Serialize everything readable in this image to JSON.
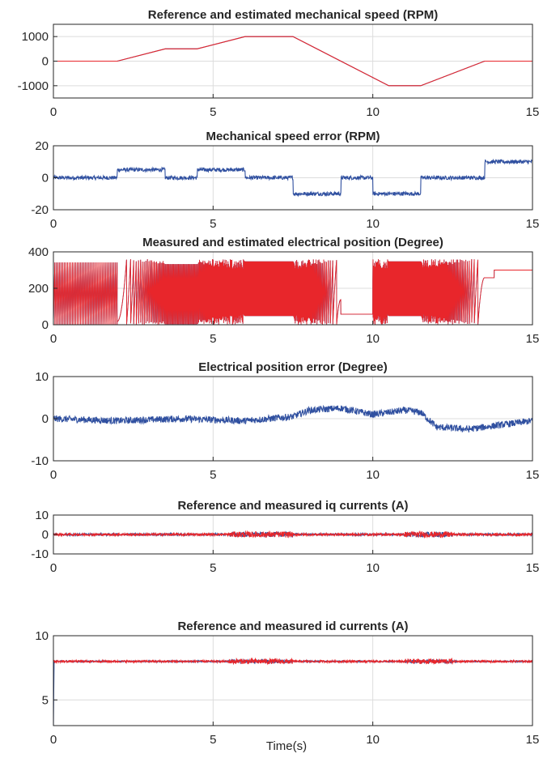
{
  "figure": {
    "xlabel": "Time(s)"
  },
  "colors": {
    "reference": "#e8262b",
    "estimate": "#3050a0",
    "grid": "#dcdcdc",
    "axis": "#262626"
  },
  "chart_data": [
    {
      "type": "line",
      "title": "Reference and estimated mechanical speed (RPM)",
      "xlim": [
        0,
        15
      ],
      "ylim": [
        -1500,
        1500
      ],
      "xticks": [
        0,
        5,
        10,
        15
      ],
      "yticks": [
        1000,
        0,
        -1000
      ],
      "grid": true,
      "series": [
        {
          "color": "#3050a0",
          "x": [
            0,
            2,
            3.5,
            4.5,
            6,
            7.5,
            9,
            10.5,
            11.5,
            13.5,
            15
          ],
          "y": [
            0,
            0,
            500,
            500,
            1000,
            1000,
            0,
            -1000,
            -1000,
            0,
            0
          ]
        },
        {
          "color": "#e8262b",
          "x": [
            0,
            2,
            3.5,
            4.5,
            6,
            7.5,
            9,
            10.5,
            11.5,
            13.5,
            15
          ],
          "y": [
            0,
            0,
            500,
            500,
            1000,
            1000,
            0,
            -1000,
            -1000,
            0,
            0
          ]
        }
      ]
    },
    {
      "type": "line",
      "title": "Mechanical speed error (RPM)",
      "xlim": [
        0,
        15
      ],
      "ylim": [
        -20,
        20
      ],
      "xticks": [
        0,
        5,
        10,
        15
      ],
      "yticks": [
        20,
        0,
        -20
      ],
      "grid": true,
      "series": [
        {
          "color": "#3050a0",
          "noise": 1.2,
          "x": [
            0,
            2,
            2,
            3.5,
            3.5,
            4.5,
            4.5,
            6,
            6,
            7.5,
            7.5,
            9,
            9,
            10,
            10,
            11.5,
            11.5,
            13.5,
            13.5,
            15
          ],
          "y": [
            0,
            0,
            5,
            5,
            0,
            0,
            5,
            5,
            0,
            0,
            -10,
            -10,
            0,
            0,
            -10,
            -10,
            0,
            0,
            10,
            10
          ]
        }
      ]
    },
    {
      "type": "line",
      "title": "Measured and estimated electrical position (Degree)",
      "xlim": [
        0,
        15
      ],
      "ylim": [
        0,
        400
      ],
      "xticks": [
        0,
        5,
        10,
        15
      ],
      "yticks": [
        400,
        200,
        0
      ],
      "grid": true,
      "series": [
        {
          "color": "#3050a0",
          "pattern": "sawtooth",
          "x": [
            0,
            2,
            3.5,
            4.5,
            6,
            7.5,
            9,
            10,
            10.5,
            11.5,
            13.5,
            15
          ],
          "y": [
            0,
            60,
            300,
            360,
            360,
            360,
            50,
            55,
            360,
            360,
            300,
            300
          ]
        },
        {
          "color": "#e8262b",
          "pattern": "sawtooth",
          "x": [
            0,
            2,
            3.5,
            4.5,
            6,
            7.5,
            9,
            10,
            10.5,
            11.5,
            13.5,
            15
          ],
          "y": [
            0,
            60,
            300,
            360,
            360,
            360,
            50,
            55,
            360,
            360,
            300,
            300
          ]
        }
      ]
    },
    {
      "type": "line",
      "title": "Electrical position error (Degree)",
      "xlim": [
        0,
        15
      ],
      "ylim": [
        -10,
        10
      ],
      "xticks": [
        0,
        5,
        10,
        15
      ],
      "yticks": [
        10,
        0,
        -10
      ],
      "grid": true,
      "series": [
        {
          "color": "#3050a0",
          "noise": 0.8,
          "x": [
            0,
            2,
            4,
            6,
            7.5,
            8,
            9,
            10,
            11,
            11.5,
            12,
            13,
            14,
            15
          ],
          "y": [
            0,
            -0.5,
            0,
            -0.5,
            0.5,
            2,
            2.5,
            1,
            2,
            1.5,
            -2,
            -2.5,
            -1.5,
            -0.5
          ]
        }
      ]
    },
    {
      "type": "line",
      "title": "Reference and measured iq currents (A)",
      "xlim": [
        0,
        15
      ],
      "ylim": [
        -10,
        10
      ],
      "xticks": [
        0,
        5,
        10,
        15
      ],
      "yticks": [
        10,
        0,
        -10
      ],
      "grid": true,
      "series": [
        {
          "color": "#3050a0",
          "noise": 0.5,
          "x": [
            0,
            15
          ],
          "y": [
            0,
            0
          ]
        },
        {
          "color": "#e8262b",
          "noise": 0.6,
          "x": [
            0,
            15
          ],
          "y": [
            0,
            0
          ]
        }
      ]
    },
    {
      "type": "line",
      "title": "Reference and measured id currents (A)",
      "xlim": [
        0,
        15
      ],
      "ylim": [
        3,
        10
      ],
      "xticks": [
        0,
        5,
        10,
        15
      ],
      "yticks": [
        10,
        5
      ],
      "grid": true,
      "series": [
        {
          "color": "#3050a0",
          "noise": 0.05,
          "x": [
            0,
            0.02,
            15
          ],
          "y": [
            3,
            8,
            8
          ]
        },
        {
          "color": "#e8262b",
          "noise": 0.08,
          "x": [
            0,
            15
          ],
          "y": [
            8,
            8
          ]
        }
      ]
    }
  ]
}
